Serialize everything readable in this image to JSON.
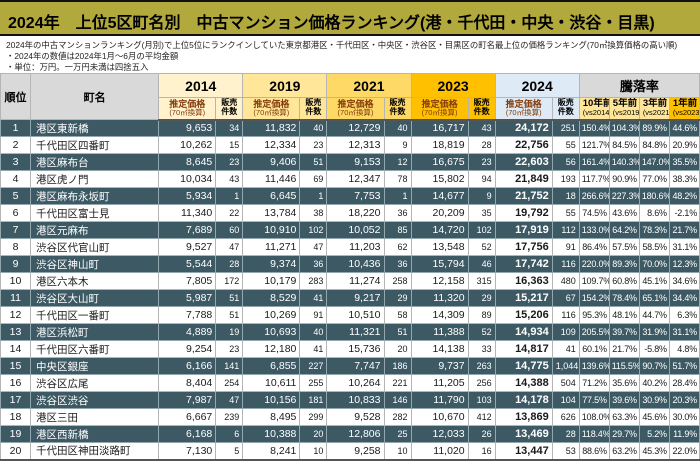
{
  "title": "2024年　上位5区町名別　中古マンション価格ランキング(港・千代田・中央・渋谷・目黒)",
  "notes": [
    "2024年の中古マンションランキング(月別)で上位5位にランクインしていた東京都港区・千代田区・中央区・渋谷区・目黒区の町名最上位の価格ランキング(70㎡換算価格の高い順)",
    "・2024年の数値は2024年1月～6月の平均金額",
    "・単位：万円。一万円未満は四捨五入"
  ],
  "colors": {
    "title_band": "#b2a93c",
    "header_gray": "#d9d9d9",
    "year_2014": "#fff2cc",
    "year_2019": "#ffe699",
    "year_2021": "#ffd966",
    "year_2023": "#ffc000",
    "year_2024": "#deeaf6",
    "highlight_row": "#3d5a64",
    "price_label": "#843c0c"
  },
  "chart_data": {
    "type": "table",
    "rank_header": "順位",
    "town_header": "町名",
    "years": [
      "2014",
      "2019",
      "2021",
      "2023",
      "2024"
    ],
    "price_label": "推定価格",
    "price_sublabel": "(70㎡換算)",
    "sales_label_1": "販売",
    "sales_label_2": "件数",
    "change_header": "騰落率",
    "change_cols": [
      {
        "label": "10年前",
        "sub": "(vs2014)"
      },
      {
        "label": "5年前",
        "sub": "(vs2019)"
      },
      {
        "label": "3年前",
        "sub": "(vs2021)"
      },
      {
        "label": "1年前",
        "sub": "(vs2023)"
      }
    ],
    "rows": [
      {
        "rank": "1",
        "town": "港区東新橋",
        "highlight": true,
        "cells": [
          "9,653",
          "34",
          "11,832",
          "40",
          "12,729",
          "40",
          "16,717",
          "43",
          "24,172",
          "251",
          "150.4%",
          "104.3%",
          "89.9%",
          "44.6%"
        ]
      },
      {
        "rank": "2",
        "town": "千代田区四番町",
        "highlight": false,
        "cells": [
          "10,262",
          "15",
          "12,334",
          "23",
          "12,313",
          "9",
          "18,819",
          "28",
          "22,756",
          "55",
          "121.7%",
          "84.5%",
          "84.8%",
          "20.9%"
        ]
      },
      {
        "rank": "3",
        "town": "港区麻布台",
        "highlight": true,
        "cells": [
          "8,645",
          "23",
          "9,406",
          "51",
          "9,153",
          "12",
          "16,675",
          "23",
          "22,603",
          "56",
          "161.4%",
          "140.3%",
          "147.0%",
          "35.5%"
        ]
      },
      {
        "rank": "4",
        "town": "港区虎ノ門",
        "highlight": false,
        "cells": [
          "10,034",
          "43",
          "11,446",
          "69",
          "12,347",
          "78",
          "15,802",
          "94",
          "21,849",
          "193",
          "117.7%",
          "90.9%",
          "77.0%",
          "38.3%"
        ]
      },
      {
        "rank": "5",
        "town": "港区麻布永坂町",
        "highlight": true,
        "cells": [
          "5,934",
          "1",
          "6,645",
          "1",
          "7,753",
          "1",
          "14,677",
          "9",
          "21,752",
          "18",
          "266.6%",
          "227.3%",
          "180.6%",
          "48.2%"
        ]
      },
      {
        "rank": "6",
        "town": "千代田区富士見",
        "highlight": false,
        "cells": [
          "11,340",
          "22",
          "13,784",
          "38",
          "18,220",
          "36",
          "20,209",
          "35",
          "19,792",
          "55",
          "74.5%",
          "43.6%",
          "8.6%",
          "-2.1%"
        ]
      },
      {
        "rank": "7",
        "town": "港区元麻布",
        "highlight": true,
        "cells": [
          "7,689",
          "60",
          "10,910",
          "102",
          "10,052",
          "85",
          "14,720",
          "102",
          "17,919",
          "112",
          "133.0%",
          "64.2%",
          "78.3%",
          "21.7%"
        ]
      },
      {
        "rank": "8",
        "town": "渋谷区代官山町",
        "highlight": false,
        "cells": [
          "9,527",
          "47",
          "11,271",
          "47",
          "11,203",
          "62",
          "13,548",
          "52",
          "17,756",
          "91",
          "86.4%",
          "57.5%",
          "58.5%",
          "31.1%"
        ]
      },
      {
        "rank": "9",
        "town": "渋谷区神山町",
        "highlight": true,
        "cells": [
          "5,544",
          "28",
          "9,374",
          "36",
          "10,436",
          "36",
          "15,794",
          "46",
          "17,742",
          "116",
          "220.0%",
          "89.3%",
          "70.0%",
          "12.3%"
        ]
      },
      {
        "rank": "10",
        "town": "港区六本木",
        "highlight": false,
        "cells": [
          "7,805",
          "172",
          "10,179",
          "283",
          "11,274",
          "258",
          "12,158",
          "315",
          "16,363",
          "480",
          "109.7%",
          "60.8%",
          "45.1%",
          "34.6%"
        ]
      },
      {
        "rank": "11",
        "town": "渋谷区大山町",
        "highlight": true,
        "cells": [
          "5,987",
          "51",
          "8,529",
          "41",
          "9,217",
          "29",
          "11,320",
          "29",
          "15,217",
          "67",
          "154.2%",
          "78.4%",
          "65.1%",
          "34.4%"
        ]
      },
      {
        "rank": "12",
        "town": "千代田区一番町",
        "highlight": false,
        "cells": [
          "7,788",
          "51",
          "10,269",
          "91",
          "10,510",
          "58",
          "14,309",
          "89",
          "15,206",
          "116",
          "95.3%",
          "48.1%",
          "44.7%",
          "6.3%"
        ]
      },
      {
        "rank": "13",
        "town": "港区浜松町",
        "highlight": true,
        "cells": [
          "4,889",
          "19",
          "10,693",
          "40",
          "11,321",
          "51",
          "11,388",
          "52",
          "14,934",
          "109",
          "205.5%",
          "39.7%",
          "31.9%",
          "31.1%"
        ]
      },
      {
        "rank": "14",
        "town": "千代田区六番町",
        "highlight": false,
        "cells": [
          "9,254",
          "23",
          "12,180",
          "41",
          "15,736",
          "20",
          "14,138",
          "33",
          "14,817",
          "41",
          "60.1%",
          "21.7%",
          "-5.8%",
          "4.8%"
        ]
      },
      {
        "rank": "15",
        "town": "中央区銀座",
        "highlight": true,
        "cells": [
          "6,166",
          "141",
          "6,855",
          "227",
          "7,747",
          "186",
          "9,737",
          "263",
          "14,775",
          "1,044",
          "139.6%",
          "115.5%",
          "90.7%",
          "51.7%"
        ]
      },
      {
        "rank": "16",
        "town": "渋谷区広尾",
        "highlight": false,
        "cells": [
          "8,404",
          "254",
          "10,611",
          "255",
          "10,264",
          "221",
          "11,205",
          "256",
          "14,388",
          "504",
          "71.2%",
          "35.6%",
          "40.2%",
          "28.4%"
        ]
      },
      {
        "rank": "17",
        "town": "渋谷区渋谷",
        "highlight": true,
        "cells": [
          "7,987",
          "47",
          "10,156",
          "181",
          "10,833",
          "146",
          "11,790",
          "103",
          "14,178",
          "104",
          "77.5%",
          "39.6%",
          "30.9%",
          "20.3%"
        ]
      },
      {
        "rank": "18",
        "town": "港区三田",
        "highlight": false,
        "cells": [
          "6,667",
          "239",
          "8,495",
          "299",
          "9,528",
          "282",
          "10,670",
          "412",
          "13,869",
          "626",
          "108.0%",
          "63.3%",
          "45.6%",
          "30.0%"
        ]
      },
      {
        "rank": "19",
        "town": "港区西新橋",
        "highlight": true,
        "cells": [
          "6,168",
          "6",
          "10,388",
          "20",
          "12,806",
          "25",
          "12,033",
          "26",
          "13,469",
          "28",
          "118.4%",
          "29.7%",
          "5.2%",
          "11.9%"
        ]
      },
      {
        "rank": "20",
        "town": "千代田区神田淡路町",
        "highlight": false,
        "cells": [
          "7,130",
          "5",
          "8,241",
          "10",
          "9,258",
          "10",
          "11,020",
          "16",
          "13,447",
          "53",
          "88.6%",
          "63.2%",
          "45.3%",
          "22.0%"
        ]
      }
    ]
  }
}
